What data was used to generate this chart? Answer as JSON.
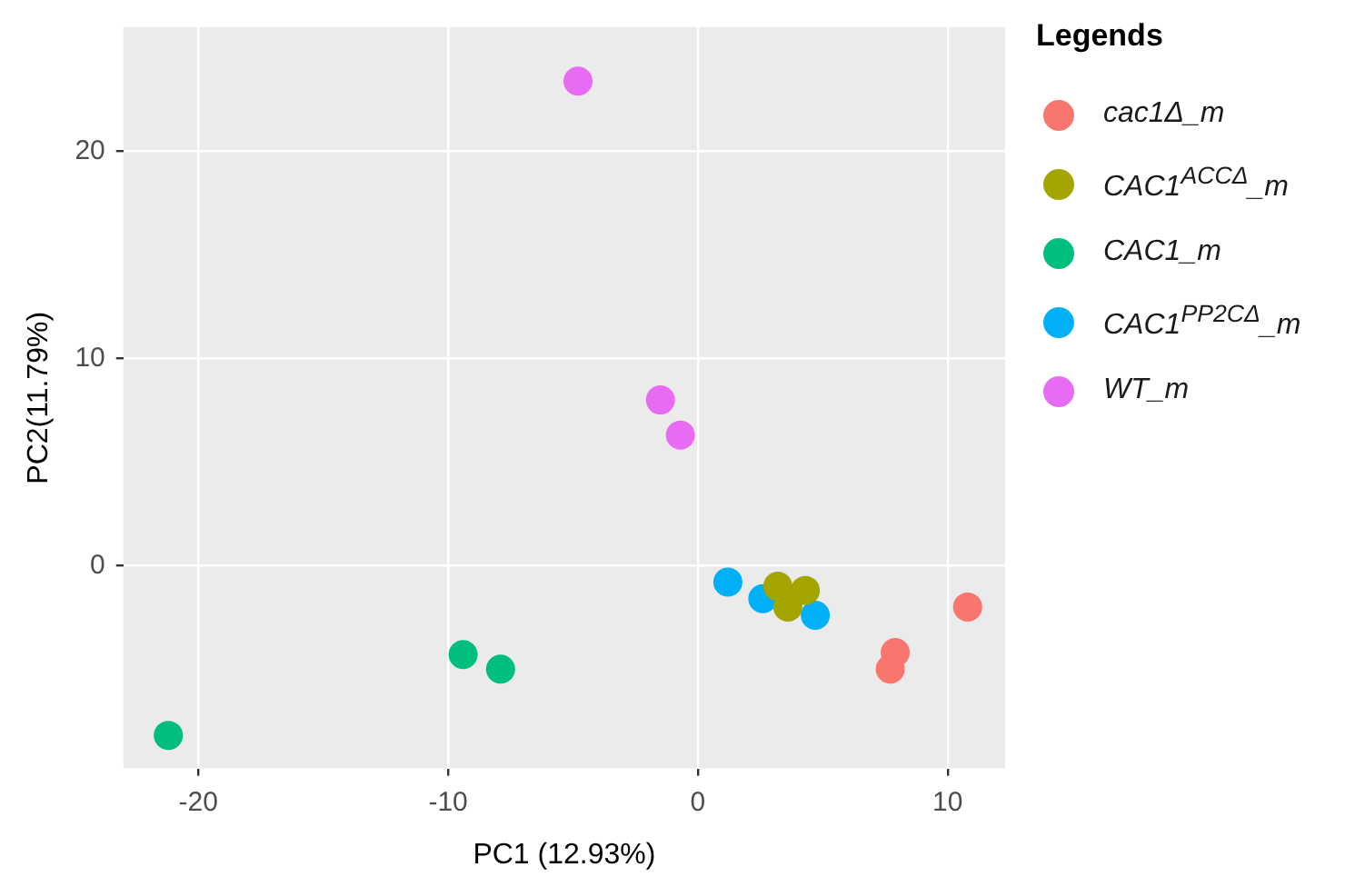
{
  "chart_data": {
    "type": "scatter",
    "xlabel": "PC1 (12.93%)",
    "ylabel": "PC2(11.79%)",
    "legend_title": "Legends",
    "legend": "right",
    "grid": true,
    "marker": "circle",
    "xlim": [
      -23,
      12.3
    ],
    "ylim": [
      -9.8,
      26
    ],
    "xticks": [
      -20,
      -10,
      0,
      10
    ],
    "yticks": [
      0,
      10,
      20
    ],
    "series": [
      {
        "name": "cac1Δ_m",
        "color": "#f8766d",
        "x": [
          10.8,
          7.9,
          7.7
        ],
        "values": [
          -2,
          -4.2,
          -5
        ]
      },
      {
        "name": "CAC1$^{ACCΔ}$_m",
        "color": "#a3a500",
        "x": [
          3.2,
          4.3,
          3.6
        ],
        "values": [
          -1,
          -1.2,
          -2
        ]
      },
      {
        "name": "CAC1_m",
        "color": "#00bf7d",
        "x": [
          -21.2,
          -9.4,
          -7.9
        ],
        "values": [
          -8.2,
          -4.3,
          -5
        ]
      },
      {
        "name": "CAC1$^{PP2CΔ}$_m",
        "color": "#00b0f6",
        "x": [
          1.2,
          2.6,
          4.7
        ],
        "values": [
          -0.8,
          -1.6,
          -2.4
        ]
      },
      {
        "name": "WT_m",
        "color": "#e76bf3",
        "x": [
          -4.8,
          -1.5,
          -0.7
        ],
        "values": [
          23.4,
          8,
          6.3
        ]
      }
    ]
  }
}
